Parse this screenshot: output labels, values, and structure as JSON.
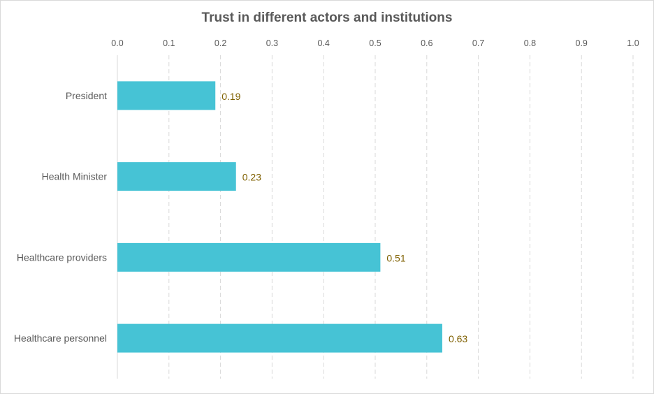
{
  "chart_data": {
    "type": "bar",
    "orientation": "horizontal",
    "title": "Trust in different actors and institutions",
    "categories": [
      "President",
      "Health Minister",
      "Healthcare providers",
      "Healthcare personnel"
    ],
    "values": [
      0.19,
      0.23,
      0.51,
      0.63
    ],
    "value_labels": [
      "0.19",
      "0.23",
      "0.51",
      "0.63"
    ],
    "xlim": [
      0.0,
      1.0
    ],
    "x_ticks": [
      "0.0",
      "0.1",
      "0.2",
      "0.3",
      "0.4",
      "0.5",
      "0.6",
      "0.7",
      "0.8",
      "0.9",
      "1.0"
    ],
    "x_axis_position": "top",
    "grid": "vertical dashed",
    "legend": "none",
    "bar_color": "#46C3D5",
    "label_color": "#7F6000",
    "text_color": "#595959",
    "grid_color": "#D9D9D9"
  }
}
